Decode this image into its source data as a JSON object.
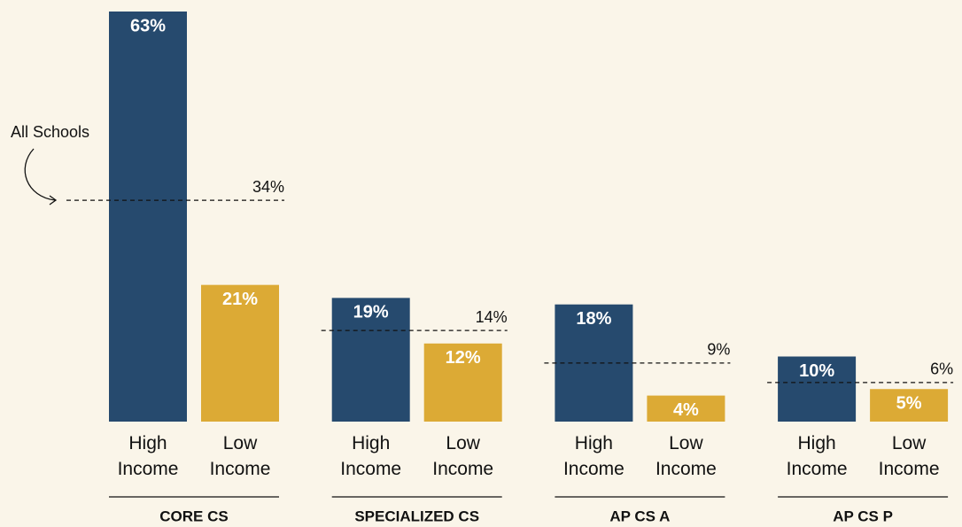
{
  "chart_data": {
    "type": "bar",
    "categories": [
      "CORE CS",
      "SPECIALIZED CS",
      "AP CS A",
      "AP CS P"
    ],
    "series": [
      {
        "name": "High Income",
        "color": "#264a6e",
        "values": [
          63,
          19,
          18,
          10
        ],
        "value_labels": [
          "63%",
          "19%",
          "18%",
          "10%"
        ]
      },
      {
        "name": "Low Income",
        "color": "#dcaa35",
        "values": [
          21,
          12,
          4,
          5
        ],
        "value_labels": [
          "21%",
          "12%",
          "4%",
          "5%"
        ]
      }
    ],
    "reference": {
      "name": "All Schools",
      "values": [
        34,
        14,
        9,
        6
      ],
      "value_labels": [
        "34%",
        "14%",
        "9%",
        "6%"
      ]
    },
    "ylim": [
      0,
      63
    ]
  }
}
